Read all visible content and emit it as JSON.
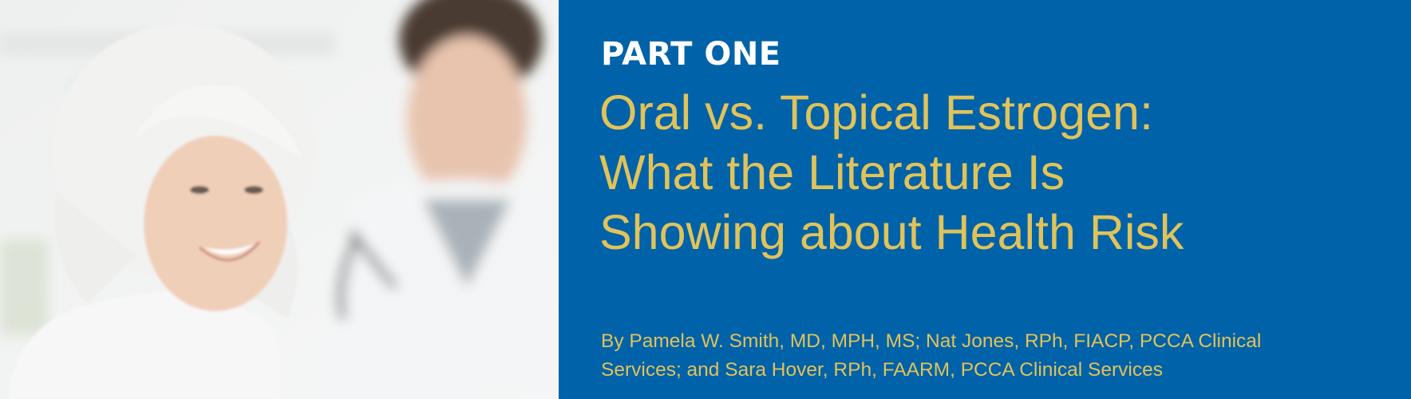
{
  "colors": {
    "panel": "#0062a8",
    "title": "#e0c35a",
    "kicker": "#ffffff"
  },
  "photo": {
    "subject": "smiling-senior-woman-with-doctor"
  },
  "kicker": "PART ONE",
  "title": {
    "lines": [
      "Oral vs. Topical Estrogen:",
      "What the Literature Is",
      "Showing about Health Risk"
    ]
  },
  "byline": {
    "lines": [
      "By Pamela W. Smith, MD, MPH, MS; Nat Jones, RPh, FIACP, PCCA Clinical",
      "Services; and Sara Hover, RPh, FAARM, PCCA Clinical Services"
    ]
  }
}
